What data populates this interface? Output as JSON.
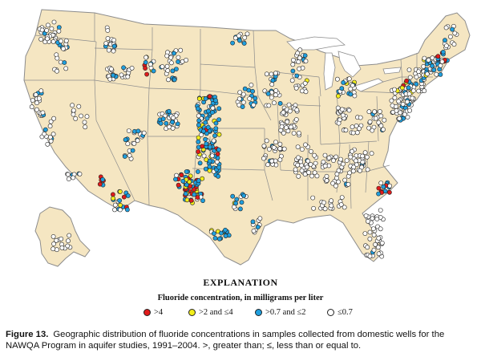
{
  "explanation": {
    "title": "EXPLANATION",
    "subtitle": "Fluoride concentration, in milligrams per liter",
    "legend": [
      {
        "label": ">4",
        "color": "#e01b1b"
      },
      {
        "label": ">2 and ≤4",
        "color": "#f2ee1a"
      },
      {
        "label": ">0.7 and ≤2",
        "color": "#1f9fde"
      },
      {
        "label": "≤0.7",
        "color": "#ffffff"
      }
    ]
  },
  "caption": {
    "label": "Figure 13.",
    "text": "Geographic distribution of fluoride concentrations in samples collected from domestic wells for the NAWQA Program in aquifer studies, 1991–2004. >, greater than; ≤, less than or equal to."
  },
  "map": {
    "land_color": "#f5e6c2",
    "water_color": "#ffffff",
    "border_color": "#8c8c8c"
  }
}
